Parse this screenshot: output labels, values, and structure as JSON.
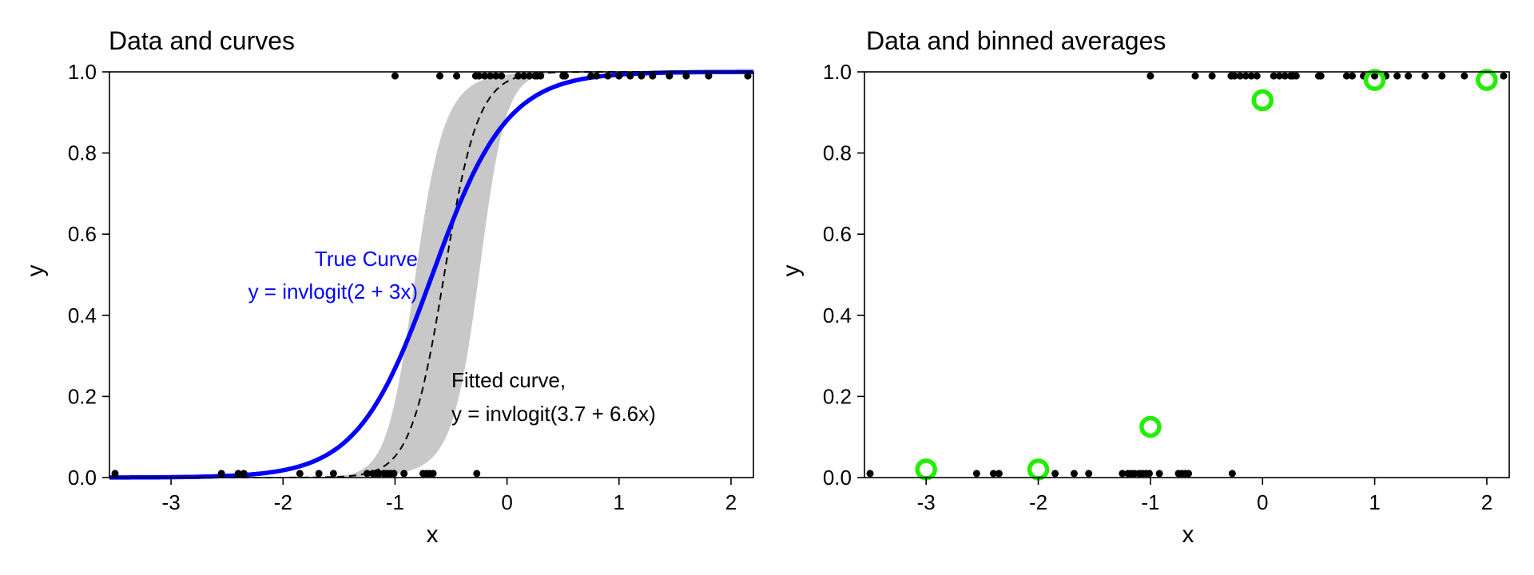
{
  "chart_data": [
    {
      "type": "scatter",
      "title": "Data and curves",
      "xlabel": "x",
      "ylabel": "y",
      "xlim": [
        -3.55,
        2.2
      ],
      "ylim": [
        0.0,
        1.0
      ],
      "xticks": [
        -3,
        -2,
        -1,
        0,
        1,
        2
      ],
      "xtick_labels": [
        "-3",
        "-2",
        "-1",
        "0",
        "1",
        "2"
      ],
      "yticks": [
        0.0,
        0.2,
        0.4,
        0.6,
        0.8,
        1.0
      ],
      "ytick_labels": [
        "0.0",
        "0.2",
        "0.4",
        "0.6",
        "0.8",
        "1.0"
      ],
      "grid": false,
      "points": {
        "y0_x": [
          -3.5,
          -2.55,
          -2.4,
          -2.35,
          -1.85,
          -1.68,
          -1.55,
          -1.25,
          -1.2,
          -1.17,
          -1.14,
          -1.1,
          -1.07,
          -1.04,
          -1.01,
          -0.92,
          -0.75,
          -0.72,
          -0.69,
          -0.66,
          -0.27
        ],
        "y1_x": [
          -1.0,
          -0.6,
          -0.45,
          -0.28,
          -0.25,
          -0.2,
          -0.15,
          -0.1,
          -0.05,
          0.1,
          0.15,
          0.2,
          0.25,
          0.27,
          0.3,
          0.5,
          0.52,
          0.75,
          0.8,
          0.9,
          1.0,
          1.1,
          1.2,
          1.3,
          1.45,
          1.6,
          1.8,
          2.15
        ],
        "y0_value": 0.01,
        "y1_value": 0.99
      },
      "true_curve": {
        "a": 2,
        "b": 3,
        "color": "#0000ff"
      },
      "fitted_curve": {
        "a": 3.7,
        "b": 6.6,
        "style": "dashed",
        "color": "#000000"
      },
      "band": {
        "color": "#c8c8c8"
      },
      "annotations": {
        "true_line1": "True Curve",
        "true_line2": "y = invlogit(2 + 3x)",
        "fitted_line1": "Fitted curve,",
        "fitted_line2": "y = invlogit(3.7 + 6.6x)"
      }
    },
    {
      "type": "scatter",
      "title": "Data and binned averages",
      "xlabel": "x",
      "ylabel": "y",
      "xlim": [
        -3.55,
        2.2
      ],
      "ylim": [
        0.0,
        1.0
      ],
      "xticks": [
        -3,
        -2,
        -1,
        0,
        1,
        2
      ],
      "xtick_labels": [
        "-3",
        "-2",
        "-1",
        "0",
        "1",
        "2"
      ],
      "yticks": [
        0.0,
        0.2,
        0.4,
        0.6,
        0.8,
        1.0
      ],
      "ytick_labels": [
        "0.0",
        "0.2",
        "0.4",
        "0.6",
        "0.8",
        "1.0"
      ],
      "grid": false,
      "points": {
        "y0_x": [
          -3.5,
          -2.55,
          -2.4,
          -2.35,
          -1.85,
          -1.68,
          -1.55,
          -1.25,
          -1.2,
          -1.17,
          -1.14,
          -1.1,
          -1.07,
          -1.04,
          -1.01,
          -0.92,
          -0.75,
          -0.72,
          -0.69,
          -0.66,
          -0.27
        ],
        "y1_x": [
          -1.0,
          -0.6,
          -0.45,
          -0.28,
          -0.25,
          -0.2,
          -0.15,
          -0.1,
          -0.05,
          0.1,
          0.15,
          0.2,
          0.25,
          0.27,
          0.3,
          0.5,
          0.52,
          0.75,
          0.8,
          0.9,
          1.0,
          1.1,
          1.2,
          1.3,
          1.45,
          1.6,
          1.8,
          2.15
        ],
        "y0_value": 0.01,
        "y1_value": 0.99
      },
      "binned_averages": {
        "x": [
          -3,
          -2,
          -1,
          0,
          1,
          2
        ],
        "y": [
          0.02,
          0.02,
          0.125,
          0.93,
          0.98,
          0.98
        ],
        "color": "#22ee00"
      }
    }
  ]
}
